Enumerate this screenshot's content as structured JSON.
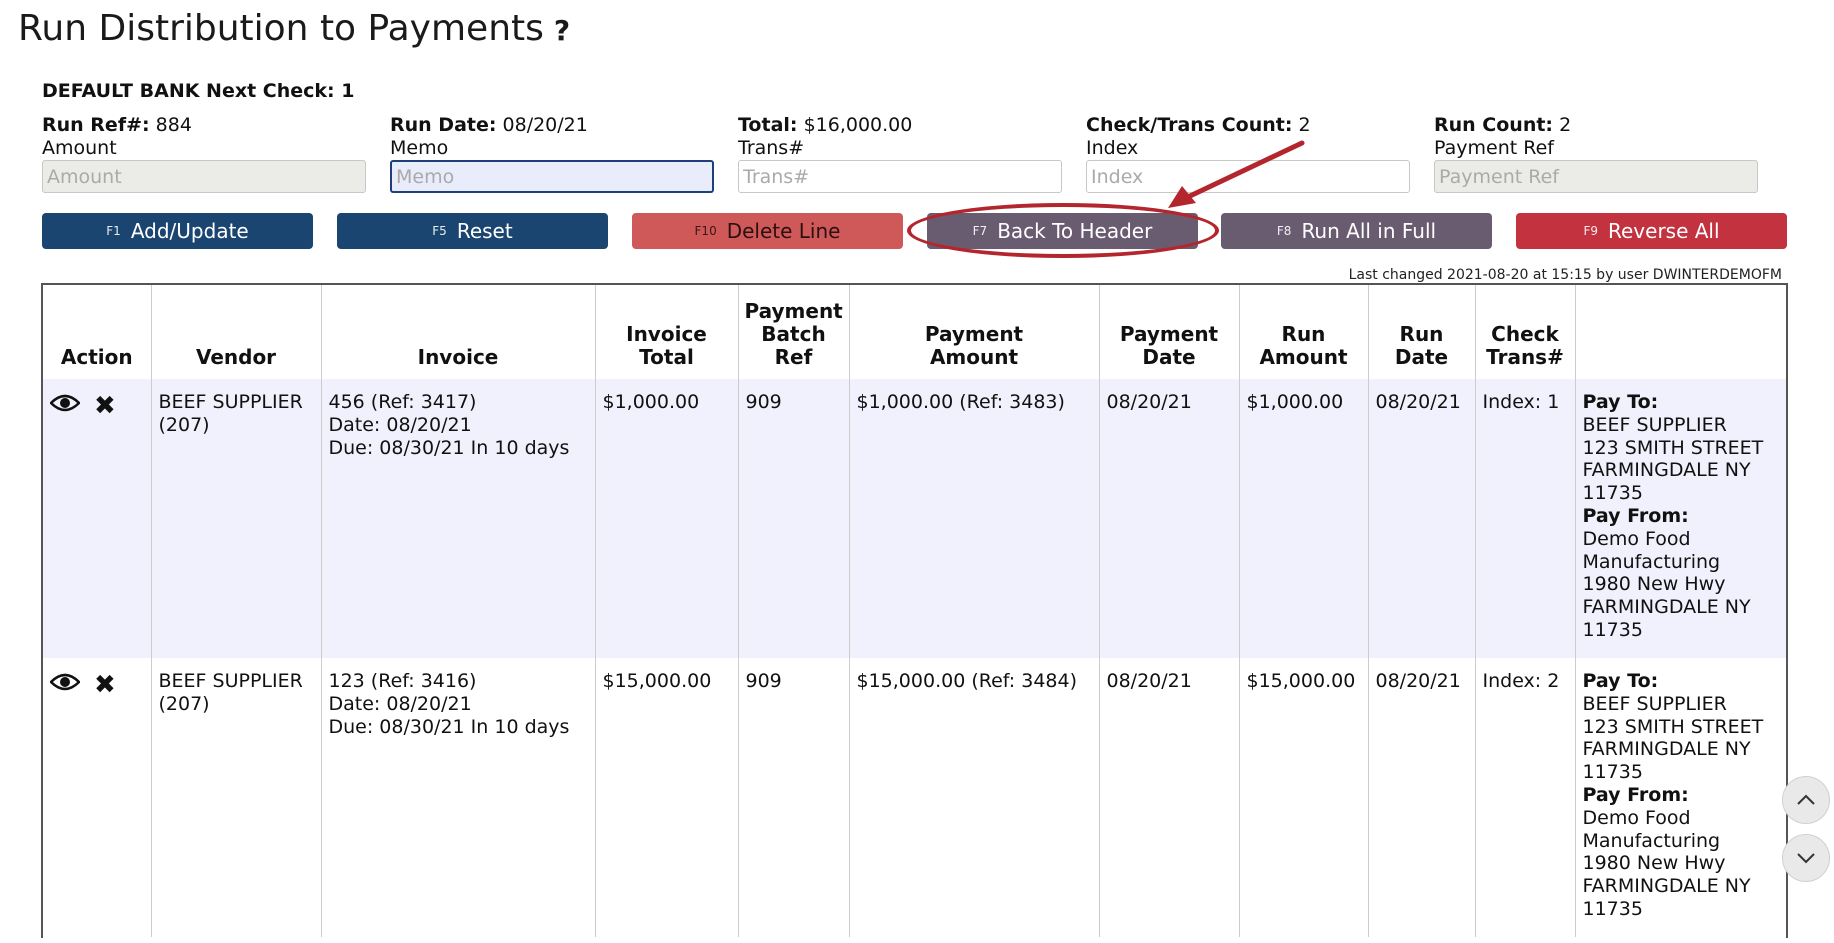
{
  "header": {
    "title": "Run Distribution to Payments",
    "help": "?"
  },
  "bank": {
    "line": "DEFAULT BANK Next Check: 1"
  },
  "fields": [
    {
      "stat_label": "Run Ref#:",
      "stat_value": "884",
      "label": "Amount",
      "placeholder": "Amount"
    },
    {
      "stat_label": "Run Date:",
      "stat_value": "08/20/21",
      "label": "Memo",
      "placeholder": "Memo"
    },
    {
      "stat_label": "Total:",
      "stat_value": "$16,000.00",
      "label": "Trans#",
      "placeholder": "Trans#"
    },
    {
      "stat_label": "Check/Trans Count:",
      "stat_value": "2",
      "label": "Index",
      "placeholder": "Index"
    },
    {
      "stat_label": "Run Count:",
      "stat_value": "2",
      "label": "Payment Ref",
      "placeholder": "Payment Ref"
    }
  ],
  "buttons": [
    {
      "key": "F1",
      "label": "Add/Update"
    },
    {
      "key": "F5",
      "label": "Reset"
    },
    {
      "key": "F10",
      "label": "Delete Line"
    },
    {
      "key": "F7",
      "label": "Back To Header"
    },
    {
      "key": "F8",
      "label": "Run All in Full"
    },
    {
      "key": "F9",
      "label": "Reverse All"
    }
  ],
  "last_changed": "Last changed 2021-08-20 at 15:15 by user DWINTERDEMOFM",
  "table": {
    "headers": [
      "Action",
      "Vendor",
      "Invoice",
      "Invoice\nTotal",
      "Payment\nBatch\nRef",
      "Payment\nAmount",
      "Payment\nDate",
      "Run\nAmount",
      "Run\nDate",
      "Check\nTrans#",
      ""
    ],
    "rows": [
      {
        "vendor": "BEEF SUPPLIER\n(207)",
        "invoice": "456 (Ref: 3417)\nDate: 08/20/21\nDue: 08/30/21 In 10 days",
        "invoice_total": "$1,000.00",
        "batch_ref": "909",
        "payment_amount": "$1,000.00 (Ref: 3483)",
        "payment_date": "08/20/21",
        "run_amount": "$1,000.00",
        "run_date": "08/20/21",
        "check_trans": "Index: 1",
        "pay_to_label": "Pay To:",
        "pay_to": "BEEF SUPPLIER\n123 SMITH STREET\nFARMINGDALE NY\n11735",
        "pay_from_label": "Pay From:",
        "pay_from": "Demo Food\nManufacturing\n1980 New Hwy\nFARMINGDALE NY\n11735"
      },
      {
        "vendor": "BEEF SUPPLIER\n(207)",
        "invoice": "123 (Ref: 3416)\nDate: 08/20/21\nDue: 08/30/21 In 10 days",
        "invoice_total": "$15,000.00",
        "batch_ref": "909",
        "payment_amount": "$15,000.00 (Ref: 3484)",
        "payment_date": "08/20/21",
        "run_amount": "$15,000.00",
        "run_date": "08/20/21",
        "check_trans": "Index: 2",
        "pay_to_label": "Pay To:",
        "pay_to": "BEEF SUPPLIER\n123 SMITH STREET\nFARMINGDALE NY\n11735",
        "pay_from_label": "Pay From:",
        "pay_from": "Demo Food\nManufacturing\n1980 New Hwy\nFARMINGDALE NY\n11735"
      }
    ]
  },
  "icons": {
    "view": "eye-icon",
    "remove": "x-icon",
    "scroll_up": "chevron-up-icon",
    "scroll_down": "chevron-down-icon"
  },
  "colors": {
    "navy": "#1a4570",
    "salmon": "#cf5858",
    "slate": "#6a5c70",
    "crimson": "#c2323f",
    "annotation": "#b3262d"
  }
}
